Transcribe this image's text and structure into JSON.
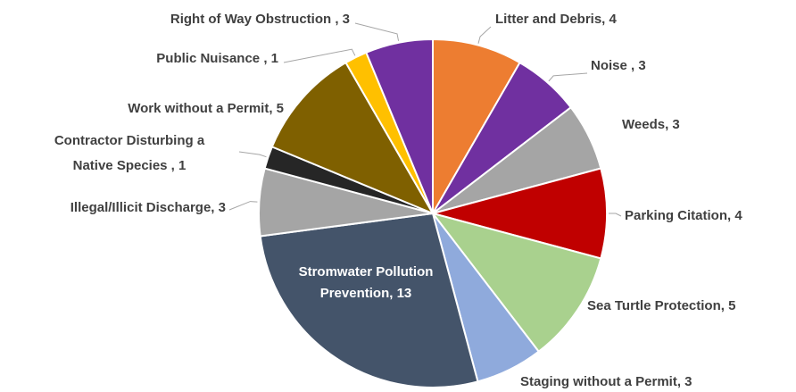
{
  "chart_data": {
    "type": "pie",
    "values": [
      4,
      3,
      3,
      4,
      5,
      3,
      13,
      3,
      1,
      5,
      1,
      3
    ],
    "value_labels": [
      [
        "Litter and Debris, 4"
      ],
      [
        "Noise , 3"
      ],
      [
        "Weeds, 3"
      ],
      [
        "Parking Citation, 4"
      ],
      [
        "Sea Turtle Protection, 5"
      ],
      [
        "Staging without a Permit, 3"
      ],
      [
        "Stromwater Pollution",
        "Prevention, 13"
      ],
      [
        "Illegal/Illicit Discharge, 3"
      ],
      [
        "Contractor Disturbing a",
        "Native Species , 1"
      ],
      [
        "Work without a Permit, 5"
      ],
      [
        "Public Nuisance , 1"
      ],
      [
        "Right of Way Obstruction , 3"
      ]
    ],
    "colors": [
      "#ED7D31",
      "#7030A0",
      "#A5A5A5",
      "#C00000",
      "#A9D18E",
      "#8FAADC",
      "#44546A",
      "#A5A5A5",
      "#262626",
      "#7F6000",
      "#FFC000",
      "#7030A0"
    ]
  }
}
